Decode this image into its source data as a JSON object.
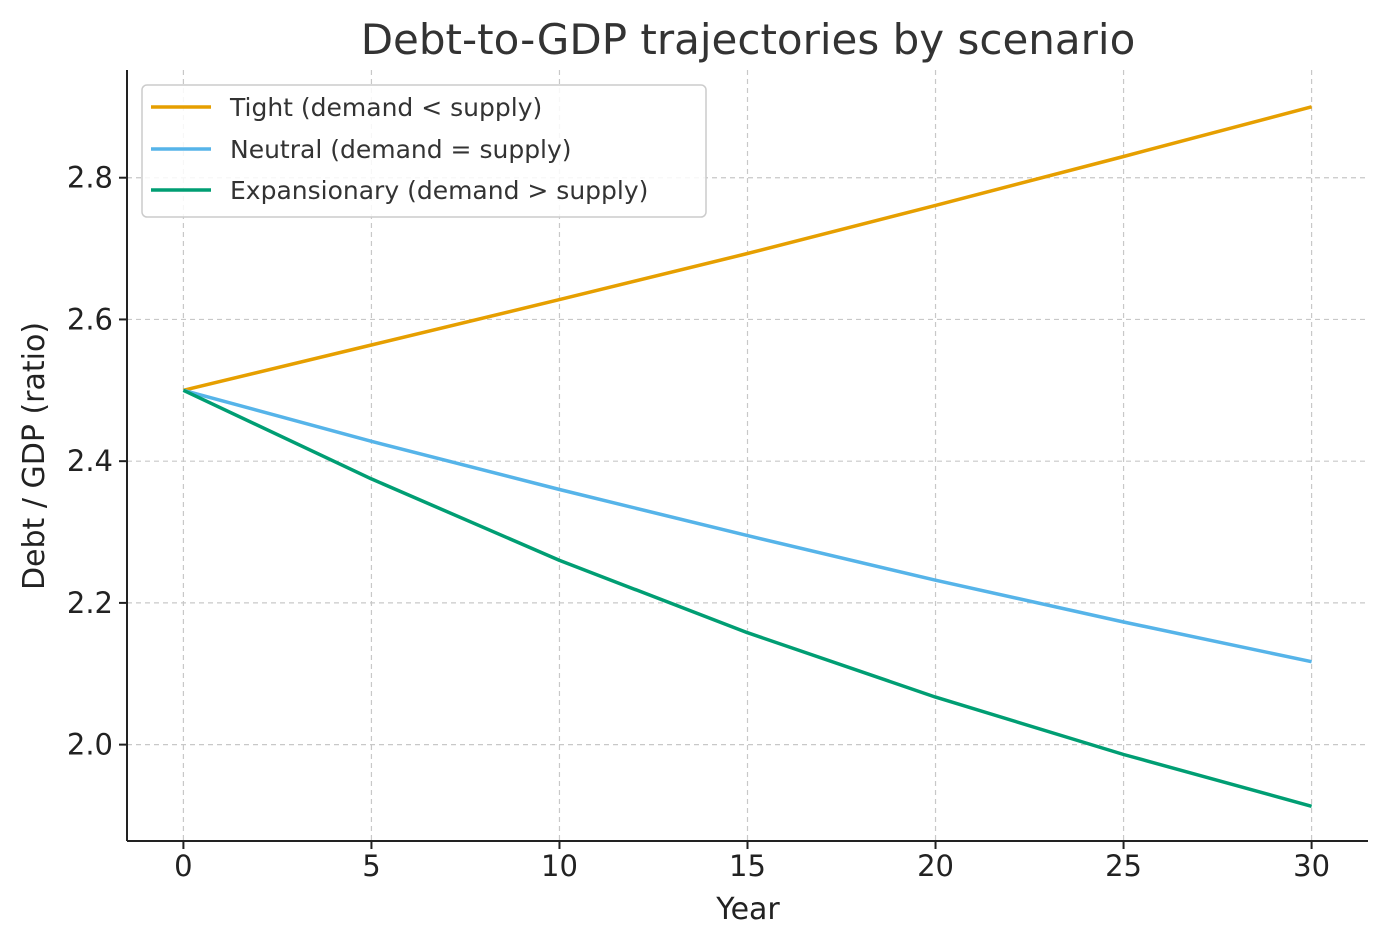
{
  "chart_data": {
    "type": "line",
    "title": "Debt-to-GDP trajectories by scenario",
    "xlabel": "Year",
    "ylabel": "Debt / GDP (ratio)",
    "xlim": [
      -1.5,
      31.5
    ],
    "ylim": [
      1.864,
      2.952
    ],
    "xticks": [
      0,
      5,
      10,
      15,
      20,
      25,
      30
    ],
    "yticks": [
      2.0,
      2.2,
      2.4,
      2.6,
      2.8
    ],
    "ytick_labels": [
      "2.0",
      "2.2",
      "2.4",
      "2.6",
      "2.8"
    ],
    "grid": true,
    "grid_style": "dashed",
    "legend_position": "upper-left",
    "x": [
      0,
      5,
      10,
      15,
      20,
      25,
      30
    ],
    "series": [
      {
        "name": "Tight (demand < supply)",
        "color": "#E69F00",
        "values": [
          2.5,
          2.564,
          2.628,
          2.693,
          2.761,
          2.83,
          2.9
        ]
      },
      {
        "name": "Neutral (demand = supply)",
        "color": "#56B4E9",
        "values": [
          2.5,
          2.428,
          2.36,
          2.295,
          2.232,
          2.173,
          2.117
        ]
      },
      {
        "name": "Expansionary (demand > supply)",
        "color": "#009E73",
        "values": [
          2.5,
          2.375,
          2.26,
          2.158,
          2.067,
          1.986,
          1.913
        ]
      }
    ]
  }
}
